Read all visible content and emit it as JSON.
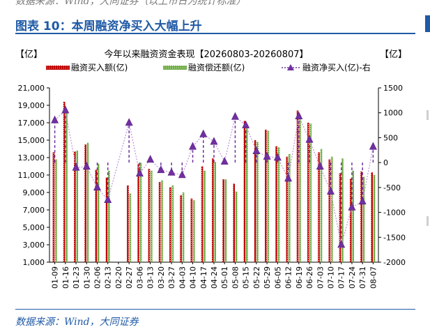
{
  "header": {
    "source_note": "数据来源：Wind，大同证券（以上市日为统计标准）",
    "figure_title": "图表 10：本周融资净买入大幅上升"
  },
  "footer": {
    "source": "数据来源：Wind，大同证券"
  },
  "colors": {
    "brand": "#1f5aa6",
    "buy": "#c00000",
    "repay": "#70ad47",
    "net": "#7030a0"
  },
  "chart_data": {
    "type": "bar",
    "title": "今年以来融资资金表现【20260803-20260807】",
    "y_left_unit": "【亿】",
    "y_right_unit": "【亿】",
    "categories": [
      "01-09",
      "01-16",
      "01-23",
      "01-30",
      "02-06",
      "02-13",
      "02-20",
      "02-27",
      "03-06",
      "03-13",
      "03-20",
      "03-27",
      "04-03",
      "04-10",
      "04-17",
      "04-24",
      "05-01",
      "05-08",
      "05-15",
      "05-22",
      "05-29",
      "06-05",
      "06-12",
      "06-19",
      "06-26",
      "07-03",
      "07-10",
      "07-17",
      "07-24",
      "07-31",
      "08-07"
    ],
    "series": [
      {
        "name": "融资买入额(亿)",
        "axis": "left",
        "kind": "bar",
        "values": [
          13600,
          19400,
          13700,
          14500,
          11600,
          10700,
          null,
          9800,
          12300,
          11700,
          10200,
          9600,
          8700,
          8300,
          12000,
          12900,
          10500,
          10000,
          17200,
          15000,
          16200,
          14300,
          13100,
          18400,
          17000,
          13600,
          12800,
          11200,
          10600,
          11400,
          11300
        ]
      },
      {
        "name": "融资偿还额(亿)",
        "axis": "left",
        "kind": "bar",
        "values": [
          12800,
          18400,
          13800,
          14700,
          12300,
          11500,
          null,
          8900,
          12400,
          11500,
          10400,
          9800,
          9000,
          8100,
          11500,
          12500,
          10500,
          9100,
          16500,
          14800,
          16100,
          14200,
          13400,
          17900,
          16900,
          14000,
          13100,
          12900,
          11500,
          10800,
          11000
        ]
      },
      {
        "name": "融资净买入(亿)-右",
        "axis": "right",
        "kind": "line",
        "values": [
          850,
          1050,
          -100,
          -80,
          -500,
          -750,
          null,
          800,
          -220,
          60,
          -150,
          -200,
          -250,
          320,
          570,
          420,
          20,
          920,
          750,
          230,
          120,
          100,
          -320,
          930,
          460,
          -80,
          -580,
          -1650,
          -900,
          -780,
          320
        ]
      }
    ],
    "y_left_ticks": [
      "1,000",
      "3,000",
      "5,000",
      "7,000",
      "9,000",
      "11,000",
      "13,000",
      "15,000",
      "17,000",
      "19,000",
      "21,000"
    ],
    "y_right_ticks": [
      "-2000",
      "-1500",
      "-1000",
      "-500",
      "0",
      "500",
      "1000",
      "1500"
    ],
    "ylim_left": [
      1000,
      21000
    ],
    "ylim_right": [
      -2000,
      1500
    ],
    "legend_placement": "top",
    "grid": false
  }
}
